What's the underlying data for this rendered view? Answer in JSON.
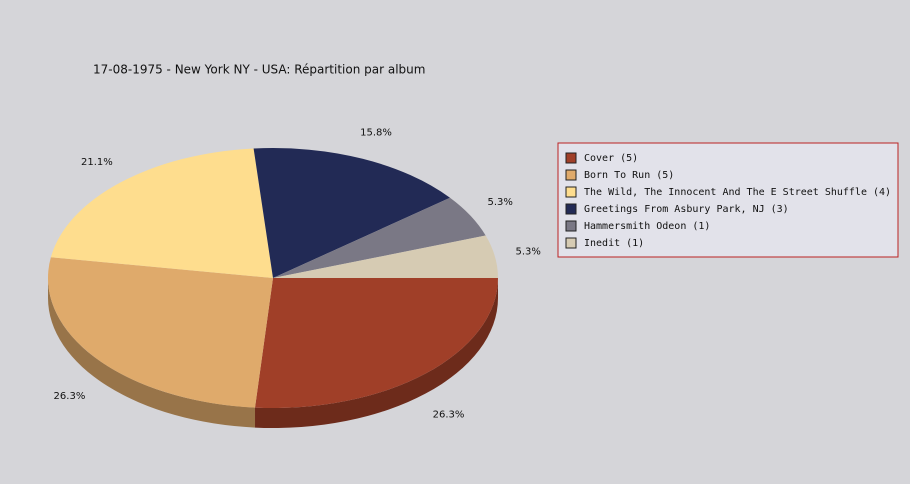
{
  "chart_data": {
    "type": "pie",
    "title": "17-08-1975 - New York NY - USA:  Répartition par album",
    "categories": [
      "Cover (5)",
      "Born To Run (5)",
      "The Wild, The Innocent And The E Street Shuffle (4)",
      "Greetings From Asbury Park, NJ (3)",
      "Hammersmith Odeon  (1)",
      "Inedit (1)"
    ],
    "values": [
      26.3,
      26.3,
      21.1,
      15.8,
      5.3,
      5.3
    ],
    "value_labels": [
      "26.3%",
      "26.3%",
      "21.1%",
      "15.8%",
      "5.3%",
      "5.3%"
    ],
    "colors": [
      "#a03f28",
      "#dfaa6b",
      "#fedd8e",
      "#222a55",
      "#7a7885",
      "#d6cbb3"
    ]
  }
}
